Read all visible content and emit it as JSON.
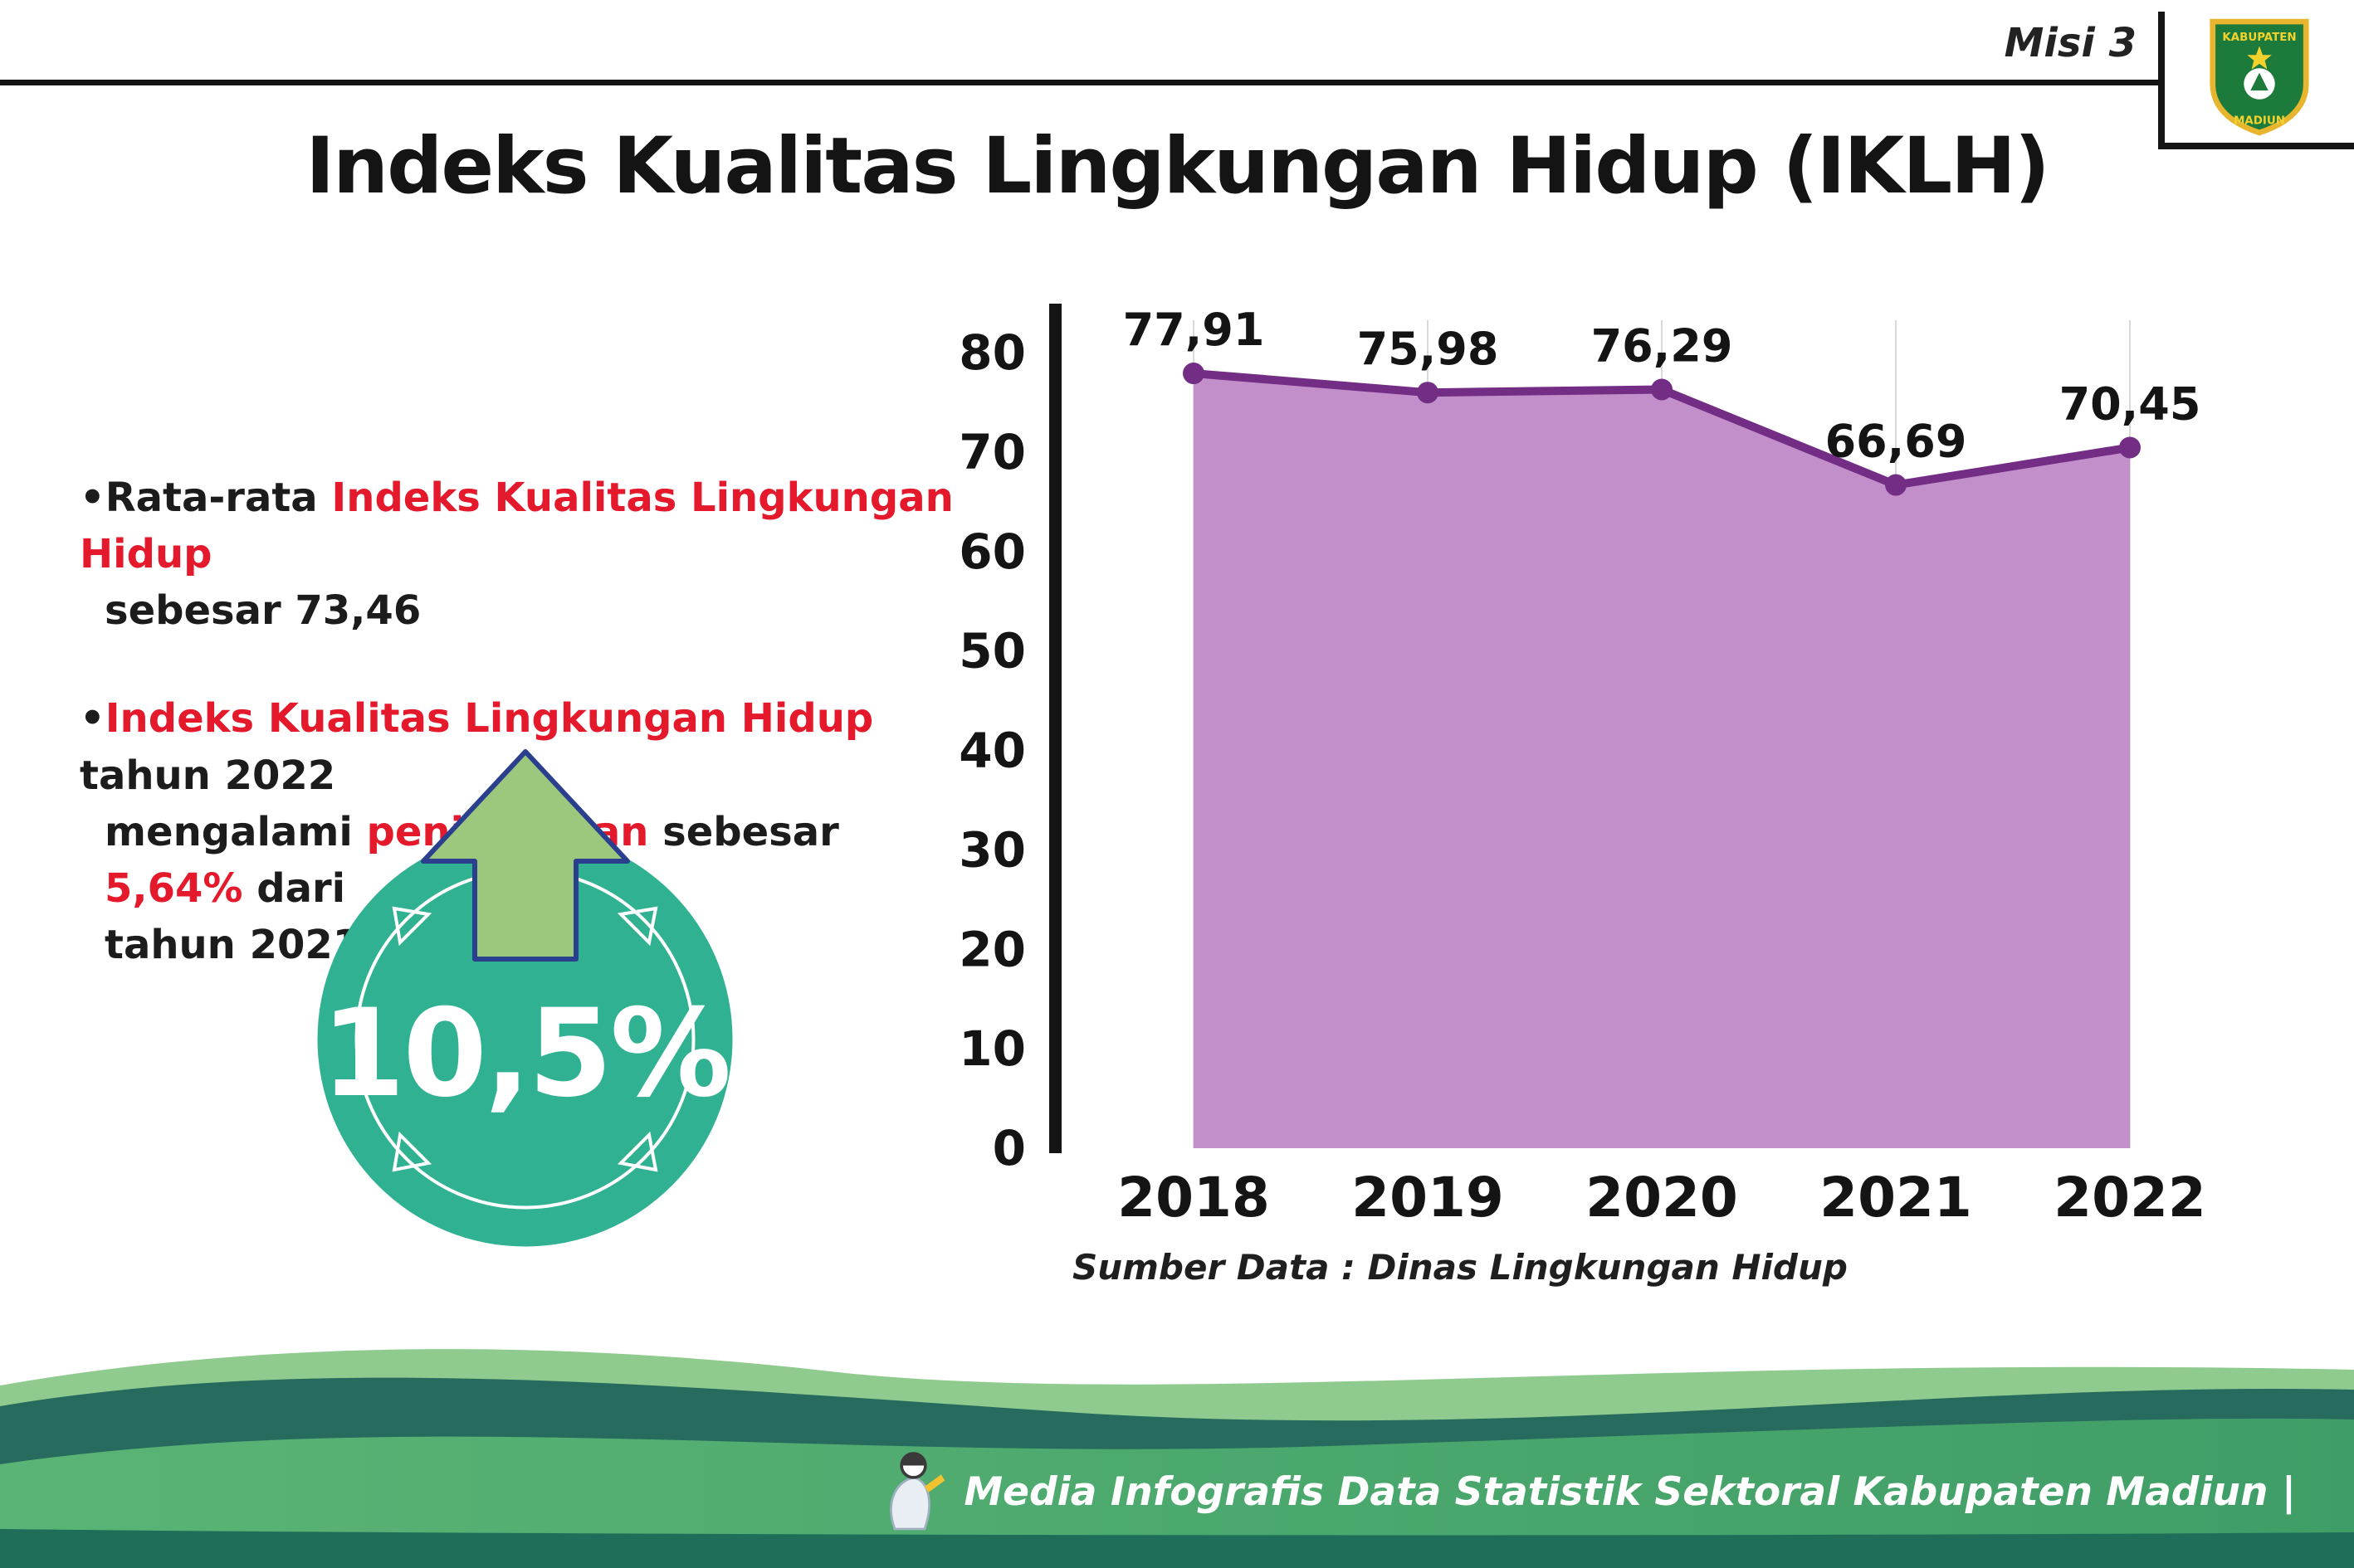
{
  "colors": {
    "red": "#e4192b",
    "dark": "#1c1c1c",
    "teal": "#2fb192",
    "arrow_green": "#9cc87d",
    "arrow_outline": "#2b3f8f",
    "line": "#732d85",
    "fill": "#c28fca",
    "footer_text": "#ffffff"
  },
  "header": {
    "misi_label": "Misi 3",
    "title": "Indeks Kualitas Lingkungan Hidup (IKLH)"
  },
  "logo": {
    "top_text": "KABUPATEN",
    "bottom_text": "MADIUN"
  },
  "bullets": {
    "marker": "•",
    "items": [
      {
        "lines": [
          [
            {
              "t": "Rata-rata ",
              "c": "dark"
            },
            {
              "t": "Indeks Kualitas Lingkungan Hidup",
              "c": "red"
            }
          ],
          [
            {
              "t": "sebesar 73,46",
              "c": "dark"
            }
          ]
        ]
      },
      {
        "lines": [
          [
            {
              "t": "Indeks Kualitas Lingkungan Hidup",
              "c": "red"
            },
            {
              "t": " tahun 2022",
              "c": "dark"
            }
          ],
          [
            {
              "t": "mengalami ",
              "c": "dark"
            },
            {
              "t": "peningkatan",
              "c": "red"
            },
            {
              "t": " sebesar ",
              "c": "dark"
            },
            {
              "t": "5,64%",
              "c": "red"
            },
            {
              "t": " dari",
              "c": "dark"
            }
          ],
          [
            {
              "t": "tahun 2021",
              "c": "dark"
            }
          ]
        ]
      }
    ]
  },
  "badge": {
    "value": "10,5%"
  },
  "chart_data": {
    "type": "area",
    "categories": [
      "2018",
      "2019",
      "2020",
      "2021",
      "2022"
    ],
    "values": [
      77.91,
      75.98,
      76.29,
      66.69,
      70.45
    ],
    "value_labels": [
      "77,91",
      "75,98",
      "76,29",
      "66,69",
      "70,45"
    ],
    "ylim": [
      0,
      80
    ],
    "yticks": [
      0,
      10,
      20,
      30,
      40,
      50,
      60,
      70,
      80
    ],
    "xlabel": "",
    "ylabel": "",
    "grid": "vertical",
    "legend": "none",
    "source": "Sumber Data : Dinas Lingkungan Hidup"
  },
  "footer": {
    "text": "Media Infografis Data Statistik Sektoral Kabupaten Madiun |"
  }
}
